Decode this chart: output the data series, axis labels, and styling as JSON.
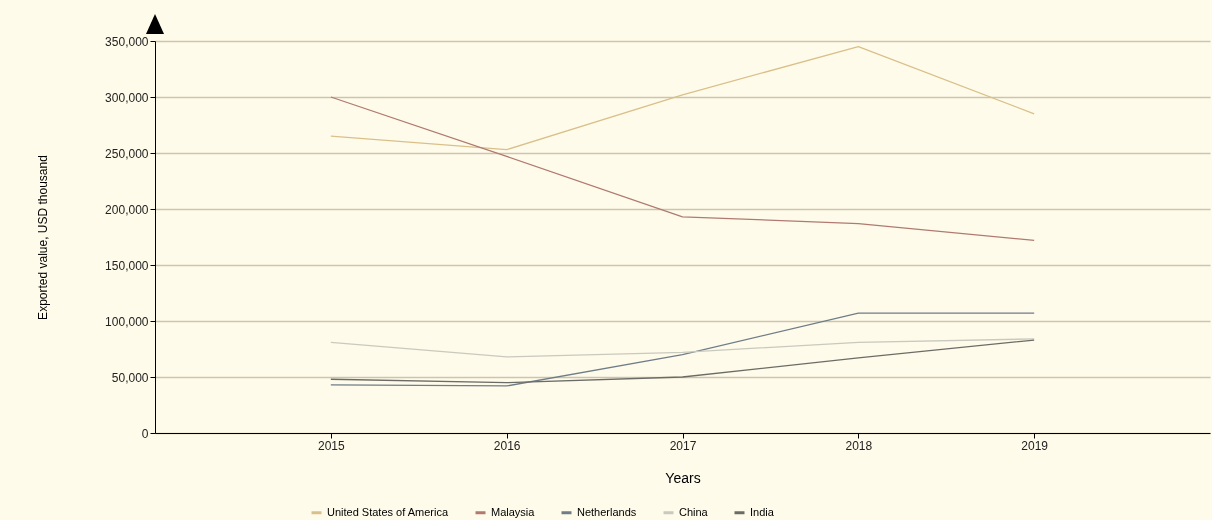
{
  "chart_data": {
    "type": "line",
    "xlabel": "Years",
    "ylabel": "Exported value, USD thousand",
    "x": [
      2015,
      2016,
      2017,
      2018,
      2019
    ],
    "xlim": [
      2014,
      2020
    ],
    "xticks": [
      2015,
      2016,
      2017,
      2018,
      2019
    ],
    "ylim": [
      0,
      350000
    ],
    "yticks": [
      0,
      {
        "value": 50000,
        "label": "50,000"
      },
      {
        "value": 100000,
        "label": "100,000"
      },
      {
        "value": 150000,
        "label": "150,000"
      },
      {
        "value": 200000,
        "label": "200,000"
      },
      {
        "value": 250000,
        "label": "250,000"
      },
      {
        "value": 300000,
        "label": "300,000"
      },
      {
        "value": 350000,
        "label": "350,000"
      }
    ],
    "series": [
      {
        "name": "United States of America",
        "color": "#d9c08a",
        "values": [
          265000,
          253000,
          302000,
          345000,
          285000
        ]
      },
      {
        "name": "Malaysia",
        "color": "#b07a70",
        "values": [
          300000,
          247000,
          193000,
          187000,
          172000
        ]
      },
      {
        "name": "Netherlands",
        "color": "#6f7d88",
        "values": [
          43000,
          42000,
          70000,
          107000,
          107000
        ]
      },
      {
        "name": "China",
        "color": "#c9c9bd",
        "values": [
          81000,
          68000,
          72000,
          81000,
          84000
        ]
      },
      {
        "name": "India",
        "color": "#6c6c66",
        "values": [
          48000,
          45000,
          50000,
          67000,
          83000
        ]
      }
    ],
    "grid": "y",
    "legend": "bottom",
    "marker": "none",
    "line_style": "solid"
  }
}
